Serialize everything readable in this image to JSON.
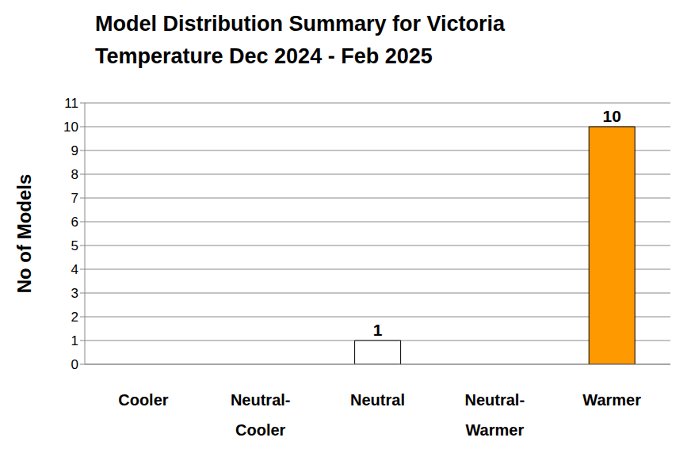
{
  "chart_data": {
    "type": "bar",
    "title": "Model Distribution Summary for Victoria\nTemperature Dec 2024 - Feb 2025",
    "ylabel": "No of Models",
    "categories": [
      "Cooler",
      "Neutral-Cooler",
      "Neutral",
      "Neutral-Warmer",
      "Warmer"
    ],
    "values": [
      0,
      0,
      1,
      0,
      10
    ],
    "colors": [
      "#ffffff",
      "#ffffff",
      "#ffffff",
      "#ffffff",
      "#ff9900"
    ],
    "ylim": [
      0,
      11
    ],
    "yticks": [
      0,
      1,
      2,
      3,
      4,
      5,
      6,
      7,
      8,
      9,
      10,
      11
    ],
    "grid": true,
    "data_labels": true
  }
}
